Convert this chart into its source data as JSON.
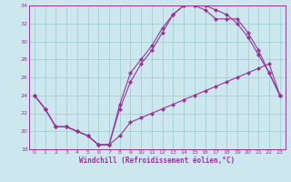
{
  "xlabel": "Windchill (Refroidissement éolien,°C)",
  "bg_color": "#cce8ee",
  "line_color": "#993399",
  "grid_color": "#99cccc",
  "xlim": [
    -0.5,
    23.5
  ],
  "ylim": [
    18,
    34
  ],
  "xticks": [
    0,
    1,
    2,
    3,
    4,
    5,
    6,
    7,
    8,
    9,
    10,
    11,
    12,
    13,
    14,
    15,
    16,
    17,
    18,
    19,
    20,
    21,
    22,
    23
  ],
  "yticks": [
    18,
    20,
    22,
    24,
    26,
    28,
    30,
    32,
    34
  ],
  "series1_x": [
    0,
    1,
    2,
    3,
    4,
    5,
    6,
    7,
    8,
    9,
    10,
    11,
    12,
    13,
    14,
    15,
    16,
    17,
    18,
    19,
    20,
    21,
    22,
    23
  ],
  "series1_y": [
    24.0,
    22.5,
    20.5,
    20.5,
    20.0,
    19.5,
    18.5,
    18.5,
    19.5,
    21.0,
    21.5,
    22.0,
    22.5,
    23.0,
    23.5,
    24.0,
    24.5,
    25.0,
    25.5,
    26.0,
    26.5,
    27.0,
    27.5,
    24.0
  ],
  "series2_x": [
    0,
    1,
    2,
    3,
    4,
    5,
    6,
    7,
    8,
    9,
    10,
    11,
    12,
    13,
    14,
    15,
    16,
    17,
    18,
    19,
    20,
    21,
    22,
    23
  ],
  "series2_y": [
    24.0,
    22.5,
    20.5,
    20.5,
    20.0,
    19.5,
    18.5,
    18.5,
    22.5,
    25.5,
    27.5,
    29.0,
    31.0,
    33.0,
    34.0,
    34.0,
    34.0,
    33.5,
    33.0,
    32.0,
    30.5,
    28.5,
    26.5,
    24.0
  ],
  "series3_x": [
    0,
    1,
    2,
    3,
    4,
    5,
    6,
    7,
    8,
    9,
    10,
    11,
    12,
    13,
    14,
    15,
    16,
    17,
    18,
    19,
    20,
    21,
    22,
    23
  ],
  "series3_y": [
    24.0,
    22.5,
    20.5,
    20.5,
    20.0,
    19.5,
    18.5,
    18.5,
    23.0,
    26.5,
    28.0,
    29.5,
    31.5,
    33.0,
    34.0,
    34.0,
    33.5,
    32.5,
    32.5,
    32.5,
    31.0,
    29.0,
    26.5,
    24.0
  ]
}
